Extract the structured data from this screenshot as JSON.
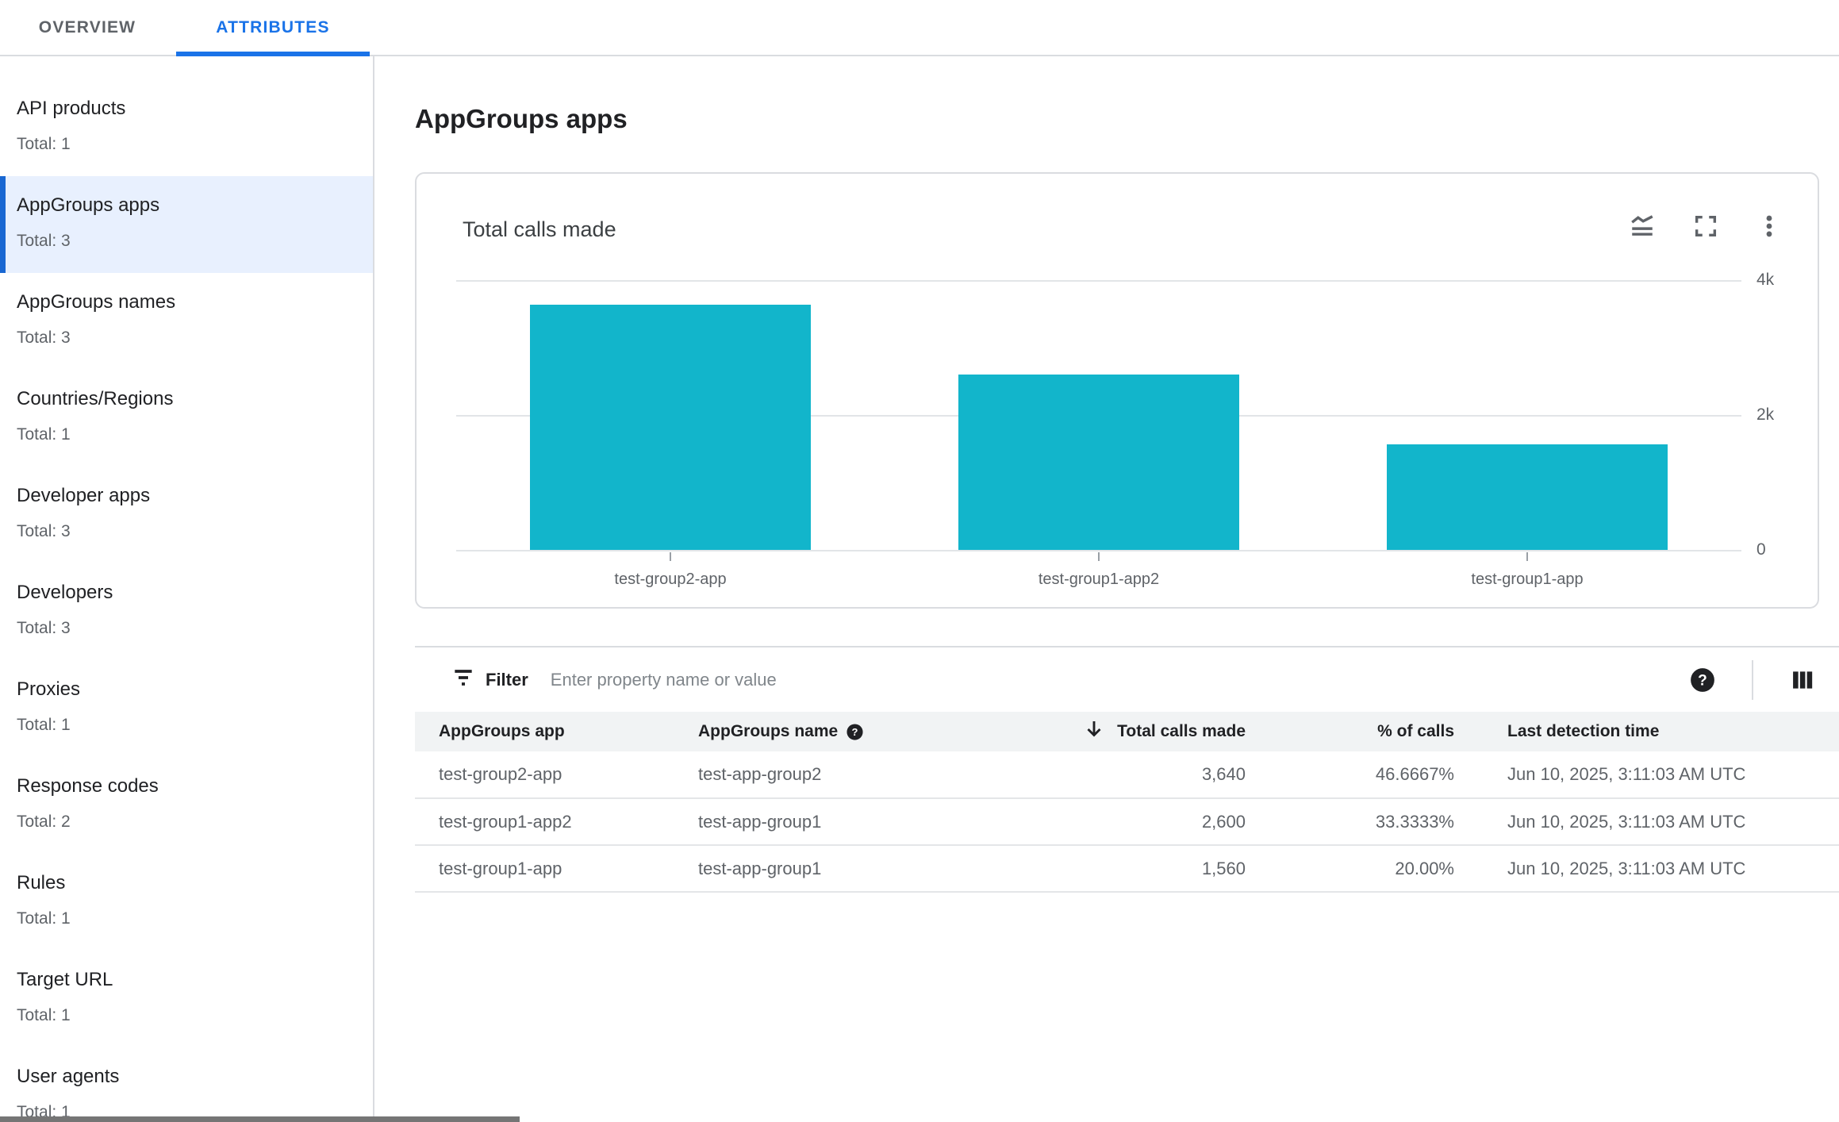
{
  "tabs": {
    "items": [
      {
        "label": "OVERVIEW",
        "active": false
      },
      {
        "label": "ATTRIBUTES",
        "active": true
      }
    ]
  },
  "sidebar": {
    "items": [
      {
        "label": "API products",
        "total": "Total: 1",
        "selected": false
      },
      {
        "label": "AppGroups apps",
        "total": "Total: 3",
        "selected": true
      },
      {
        "label": "AppGroups names",
        "total": "Total: 3",
        "selected": false
      },
      {
        "label": "Countries/Regions",
        "total": "Total: 1",
        "selected": false
      },
      {
        "label": "Developer apps",
        "total": "Total: 3",
        "selected": false
      },
      {
        "label": "Developers",
        "total": "Total: 3",
        "selected": false
      },
      {
        "label": "Proxies",
        "total": "Total: 1",
        "selected": false
      },
      {
        "label": "Response codes",
        "total": "Total: 2",
        "selected": false
      },
      {
        "label": "Rules",
        "total": "Total: 1",
        "selected": false
      },
      {
        "label": "Target URL",
        "total": "Total: 1",
        "selected": false
      },
      {
        "label": "User agents",
        "total": "Total: 1",
        "selected": false
      }
    ]
  },
  "main": {
    "title": "AppGroups apps",
    "chart_card": {
      "title": "Total calls made",
      "icons": [
        "stacked-line-chart",
        "fullscreen",
        "kebab-menu"
      ]
    },
    "filter": {
      "label": "Filter",
      "placeholder": "Enter property name or value",
      "icons": [
        "filter-list",
        "help-circle",
        "view-columns"
      ]
    },
    "table": {
      "columns": [
        "AppGroups app",
        "AppGroups name",
        "Total calls made",
        "% of calls",
        "Last detection time"
      ],
      "sorted_column": "Total calls made",
      "sort_direction": "descending",
      "rows": [
        [
          "test-group2-app",
          "test-app-group2",
          "3,640",
          "46.6667%",
          "Jun 10, 2025, 3:11:03 AM UTC"
        ],
        [
          "test-group1-app2",
          "test-app-group1",
          "2,600",
          "33.3333%",
          "Jun 10, 2025, 3:11:03 AM UTC"
        ],
        [
          "test-group1-app",
          "test-app-group1",
          "1,560",
          "20.00%",
          "Jun 10, 2025, 3:11:03 AM UTC"
        ]
      ]
    }
  },
  "chart_data": {
    "type": "bar",
    "title": "Total calls made",
    "categories": [
      "test-group2-app",
      "test-group1-app2",
      "test-group1-app"
    ],
    "values": [
      3640,
      2600,
      1560
    ],
    "ylim": [
      0,
      4000
    ],
    "yticks": [
      {
        "value": 4000,
        "label": "4k"
      },
      {
        "value": 2000,
        "label": "2k"
      },
      {
        "value": 0,
        "label": "0"
      }
    ],
    "bar_color": "#12B5CB",
    "grid": "horizontal",
    "axis_side": "right",
    "legend": "none"
  },
  "colors": {
    "accent_blue": "#1A73E8",
    "selected_item_bg": "#E8F0FE",
    "selected_item_bar": "#1967D2",
    "bar_teal": "#12B5CB",
    "border": "#DADCE0",
    "table_header_bg": "#F1F3F4",
    "text_primary": "#202124",
    "text_secondary": "#5F6368"
  }
}
